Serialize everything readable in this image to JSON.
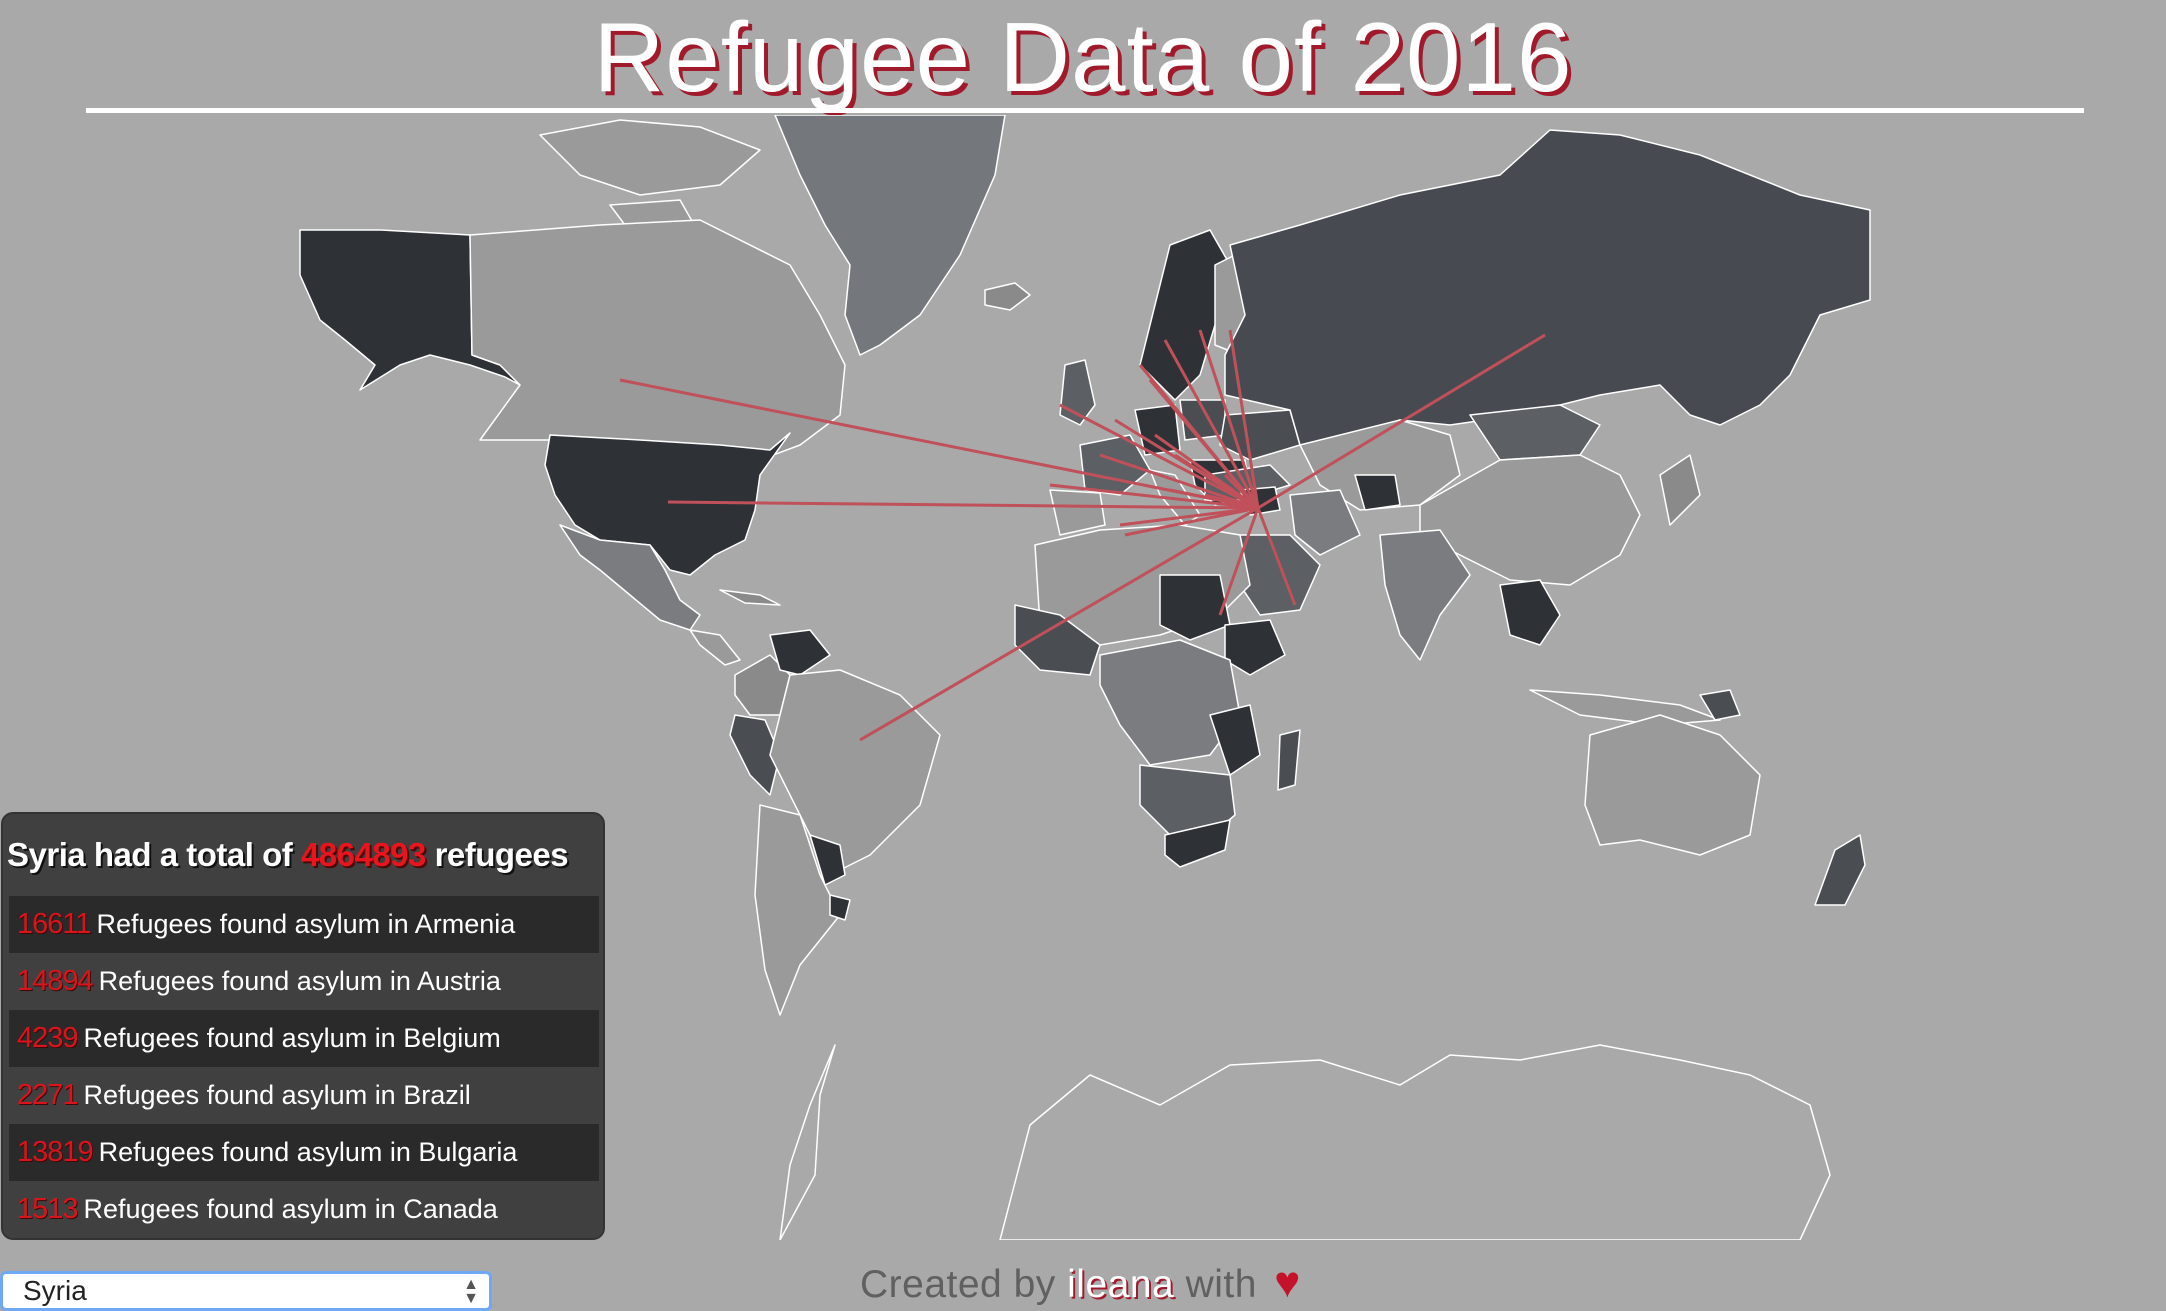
{
  "title": "Refugee Data of 2016",
  "summary": {
    "prefix": "Syria had a total of",
    "total": "4864893",
    "suffix": "refugees"
  },
  "destinations": [
    {
      "count": "16611",
      "text": "Refugees found asylum in Armenia"
    },
    {
      "count": "14894",
      "text": "Refugees found asylum in Austria"
    },
    {
      "count": "4239",
      "text": "Refugees found asylum in Belgium"
    },
    {
      "count": "2271",
      "text": "Refugees found asylum in Brazil"
    },
    {
      "count": "13819",
      "text": "Refugees found asylum in Bulgaria"
    },
    {
      "count": "1513",
      "text": "Refugees found asylum in Canada"
    }
  ],
  "footer": {
    "prefix": "Created by",
    "author": "ileana",
    "with": "with",
    "heart_icon": "heart-icon"
  },
  "country_select": {
    "selected": "Syria"
  },
  "colors": {
    "background": "#a9a9a9",
    "accent_red": "#d8141d",
    "flow_line": "#c0505a",
    "panel": "#404040"
  }
}
